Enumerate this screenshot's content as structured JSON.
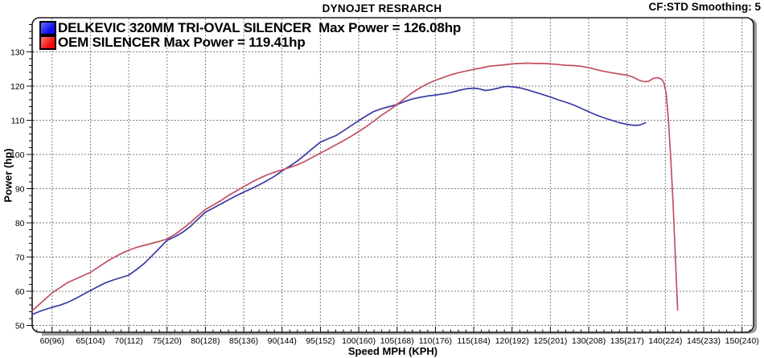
{
  "header": {
    "title": "DYNOJET RESRARCH",
    "cf_label": "CF:STD Smoothing: 5"
  },
  "legend": [
    {
      "swatch_color_top": "#5a5aff",
      "swatch_color": "#0b0bec",
      "label": "DELKEVIC 320MM TRI-OVAL SILENCER  Max Power = 126.08hp"
    },
    {
      "swatch_color_top": "#ff6060",
      "swatch_color": "#ee0c0c",
      "label": "OEM SILENCER Max Power = 119.41hp"
    }
  ],
  "chart_data": {
    "type": "line",
    "title": "DYNOJET RESRARCH",
    "xlabel": "Speed MPH (KPH)",
    "ylabel": "Power (hp)",
    "xlim": [
      57.4,
      151.5
    ],
    "ylim": [
      48,
      140
    ],
    "grid": "dashed gray at major ticks",
    "legend_position": "top-left inside plot",
    "x_major_ticks": [
      60,
      65,
      70,
      75,
      80,
      85,
      90,
      95,
      100,
      105,
      110,
      115,
      120,
      125,
      130,
      135,
      140,
      145,
      150
    ],
    "x_tick_labels": [
      "60(96)",
      "65(104)",
      "70(112)",
      "75(120)",
      "80(128)",
      "85(136)",
      "90(144)",
      "95(152)",
      "100(160)",
      "105(168)",
      "110(176)",
      "115(184)",
      "120(192)",
      "125(201)",
      "130(208)",
      "135(217)",
      "140(224)",
      "145(233)",
      "150(240)"
    ],
    "x_minor_step": 1,
    "y_major_ticks": [
      50,
      60,
      70,
      80,
      90,
      100,
      110,
      120,
      130
    ],
    "y_minor_step": 2,
    "series": [
      {
        "id": "blue-curve",
        "color": "#3a3aa5",
        "points": [
          [
            57.4,
            53.2
          ],
          [
            58.5,
            54.2
          ],
          [
            60,
            55.3
          ],
          [
            61,
            55.9
          ],
          [
            62,
            56.7
          ],
          [
            63,
            57.8
          ],
          [
            64,
            59.0
          ],
          [
            65,
            60.2
          ],
          [
            66,
            61.4
          ],
          [
            67,
            62.5
          ],
          [
            68,
            63.3
          ],
          [
            69,
            64.0
          ],
          [
            70,
            64.7
          ],
          [
            71,
            66.3
          ],
          [
            72,
            68.1
          ],
          [
            73,
            70.3
          ],
          [
            74,
            72.6
          ],
          [
            75,
            74.9
          ],
          [
            76,
            75.9
          ],
          [
            77,
            77.2
          ],
          [
            78,
            78.9
          ],
          [
            79,
            81.0
          ],
          [
            80,
            83.1
          ],
          [
            81,
            84.3
          ],
          [
            82,
            85.5
          ],
          [
            83,
            86.7
          ],
          [
            84,
            87.9
          ],
          [
            85,
            89.0
          ],
          [
            86,
            90.0
          ],
          [
            87,
            91.1
          ],
          [
            88,
            92.3
          ],
          [
            89,
            93.6
          ],
          [
            90,
            95.2
          ],
          [
            91,
            96.6
          ],
          [
            92,
            98.1
          ],
          [
            93,
            99.9
          ],
          [
            94,
            101.8
          ],
          [
            95,
            103.6
          ],
          [
            96,
            104.6
          ],
          [
            97,
            105.5
          ],
          [
            98,
            106.9
          ],
          [
            99,
            108.4
          ],
          [
            100,
            109.9
          ],
          [
            101,
            111.3
          ],
          [
            102,
            112.6
          ],
          [
            103,
            113.4
          ],
          [
            104,
            114.0
          ],
          [
            105,
            114.6
          ],
          [
            106,
            115.5
          ],
          [
            107,
            116.2
          ],
          [
            108,
            116.7
          ],
          [
            109,
            117.1
          ],
          [
            110,
            117.4
          ],
          [
            111,
            117.7
          ],
          [
            112,
            118.1
          ],
          [
            113,
            118.7
          ],
          [
            114,
            119.2
          ],
          [
            115,
            119.4
          ],
          [
            115.7,
            119.2
          ],
          [
            116.5,
            118.7
          ],
          [
            117.2,
            118.9
          ],
          [
            118,
            119.3
          ],
          [
            118.7,
            119.7
          ],
          [
            119.3,
            119.9
          ],
          [
            120,
            119.8
          ],
          [
            121,
            119.5
          ],
          [
            122,
            118.9
          ],
          [
            123,
            118.2
          ],
          [
            124,
            117.5
          ],
          [
            125,
            116.8
          ],
          [
            126,
            116.0
          ],
          [
            127,
            115.3
          ],
          [
            128,
            114.5
          ],
          [
            129,
            113.5
          ],
          [
            130,
            112.5
          ],
          [
            131,
            111.5
          ],
          [
            132,
            110.7
          ],
          [
            133,
            110.0
          ],
          [
            134,
            109.3
          ],
          [
            135,
            108.8
          ],
          [
            136,
            108.5
          ],
          [
            136.7,
            108.6
          ],
          [
            137.4,
            109.3
          ]
        ]
      },
      {
        "id": "red-curve",
        "color": "#c05060",
        "points": [
          [
            57.4,
            54.3
          ],
          [
            58.5,
            56.5
          ],
          [
            60,
            59.5
          ],
          [
            61,
            61.0
          ],
          [
            62,
            62.5
          ],
          [
            63.5,
            64.0
          ],
          [
            65,
            65.5
          ],
          [
            66,
            67.0
          ],
          [
            67,
            68.5
          ],
          [
            68,
            69.8
          ],
          [
            69,
            71.0
          ],
          [
            70,
            72.0
          ],
          [
            71,
            72.8
          ],
          [
            72,
            73.4
          ],
          [
            73,
            74.0
          ],
          [
            74,
            74.6
          ],
          [
            75,
            75.3
          ],
          [
            76,
            76.6
          ],
          [
            77,
            78.2
          ],
          [
            78,
            80.0
          ],
          [
            79,
            82.0
          ],
          [
            80,
            83.9
          ],
          [
            81,
            85.2
          ],
          [
            82,
            86.5
          ],
          [
            83,
            88.0
          ],
          [
            84,
            89.3
          ],
          [
            85,
            90.6
          ],
          [
            86,
            91.8
          ],
          [
            87,
            93.0
          ],
          [
            88,
            94.0
          ],
          [
            89,
            94.8
          ],
          [
            90,
            95.5
          ],
          [
            91,
            96.2
          ],
          [
            92,
            97.0
          ],
          [
            93,
            98.0
          ],
          [
            94,
            99.2
          ],
          [
            95,
            100.4
          ],
          [
            96,
            101.6
          ],
          [
            97,
            102.8
          ],
          [
            98,
            104.0
          ],
          [
            99,
            105.3
          ],
          [
            100,
            106.7
          ],
          [
            101,
            108.2
          ],
          [
            102,
            109.8
          ],
          [
            103,
            111.5
          ],
          [
            104,
            113.0
          ],
          [
            105,
            114.6
          ],
          [
            106,
            116.4
          ],
          [
            107,
            118.1
          ],
          [
            108,
            119.5
          ],
          [
            109,
            120.7
          ],
          [
            110,
            121.7
          ],
          [
            111,
            122.5
          ],
          [
            112,
            123.3
          ],
          [
            113,
            123.9
          ],
          [
            114,
            124.4
          ],
          [
            115,
            124.9
          ],
          [
            116,
            125.3
          ],
          [
            117,
            125.8
          ],
          [
            118,
            126.0
          ],
          [
            119,
            126.2
          ],
          [
            120,
            126.5
          ],
          [
            121,
            126.6
          ],
          [
            122,
            126.7
          ],
          [
            123,
            126.6
          ],
          [
            124,
            126.6
          ],
          [
            125,
            126.5
          ],
          [
            126,
            126.3
          ],
          [
            127,
            126.1
          ],
          [
            128,
            126.0
          ],
          [
            129,
            125.8
          ],
          [
            130,
            125.4
          ],
          [
            131,
            124.8
          ],
          [
            132,
            124.3
          ],
          [
            133,
            123.9
          ],
          [
            134,
            123.5
          ],
          [
            135,
            123.2
          ],
          [
            135.8,
            122.6
          ],
          [
            136.5,
            121.8
          ],
          [
            137.2,
            121.3
          ],
          [
            137.8,
            121.4
          ],
          [
            138.4,
            122.2
          ],
          [
            139,
            122.5
          ],
          [
            139.5,
            122.0
          ],
          [
            139.8,
            121.0
          ],
          [
            140.1,
            118.0
          ],
          [
            140.4,
            110.0
          ],
          [
            140.7,
            99.0
          ],
          [
            141,
            86.0
          ],
          [
            141.3,
            70.0
          ],
          [
            141.6,
            54.5
          ]
        ]
      }
    ]
  }
}
